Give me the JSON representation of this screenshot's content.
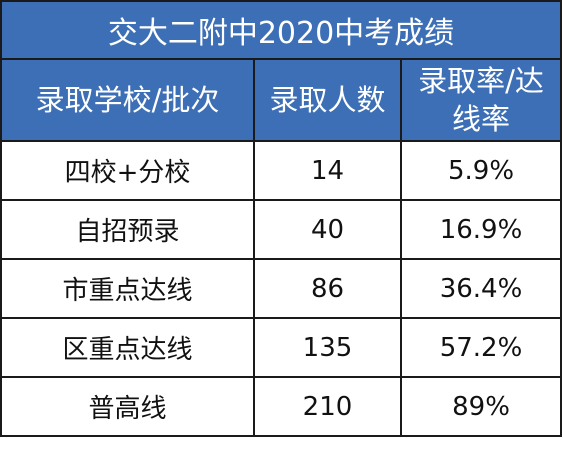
{
  "table": {
    "title": "交大二附中2020中考成绩",
    "header": [
      "录取学校/批次",
      "录取人数",
      "录取率/达线率"
    ],
    "rows": [
      [
        "四校+分校",
        14,
        "5.9%"
      ],
      [
        "自招预录",
        40,
        "16.9%"
      ],
      [
        "市重点达线",
        86,
        "36.4%"
      ],
      [
        "区重点达线",
        135,
        "57.2%"
      ],
      [
        "普高线",
        210,
        "89%"
      ]
    ]
  }
}
